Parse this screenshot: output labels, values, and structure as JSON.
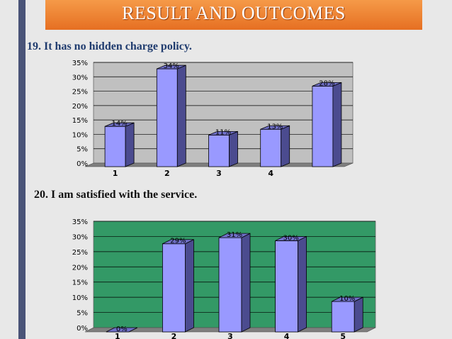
{
  "header": {
    "title": "RESULT AND OUTCOMES"
  },
  "questions": {
    "q19": "19. It has no hidden charge policy.",
    "q20": "20. I am satisfied with the service."
  },
  "colors": {
    "banner": "#ee7d2e",
    "bar_front": "#9999ff",
    "bar_side": "#4b4b8f",
    "chart1_bg": "#c0c0c0",
    "chart2_bg": "#339966"
  },
  "chart_data": [
    {
      "type": "bar",
      "title": "",
      "categories": [
        "1",
        "2",
        "3",
        "4",
        ""
      ],
      "values": [
        14,
        34,
        11,
        13,
        28
      ],
      "labels": [
        "14%",
        "34%",
        "11%",
        "13%",
        "28%"
      ],
      "yticks": [
        "0%",
        "5%",
        "10%",
        "15%",
        "20%",
        "25%",
        "30%",
        "35%"
      ],
      "ylim": [
        0,
        35
      ],
      "grid": true,
      "xlabel": "",
      "ylabel": ""
    },
    {
      "type": "bar",
      "title": "",
      "categories": [
        "1",
        "2",
        "3",
        "4",
        "5"
      ],
      "values": [
        0,
        29,
        31,
        30,
        10
      ],
      "labels": [
        "0%",
        "29%",
        "31%",
        "30%",
        "10%"
      ],
      "yticks": [
        "0%",
        "5%",
        "10%",
        "15%",
        "20%",
        "25%",
        "30%",
        "35%"
      ],
      "ylim": [
        0,
        35
      ],
      "grid": true,
      "xlabel": "",
      "ylabel": ""
    }
  ]
}
